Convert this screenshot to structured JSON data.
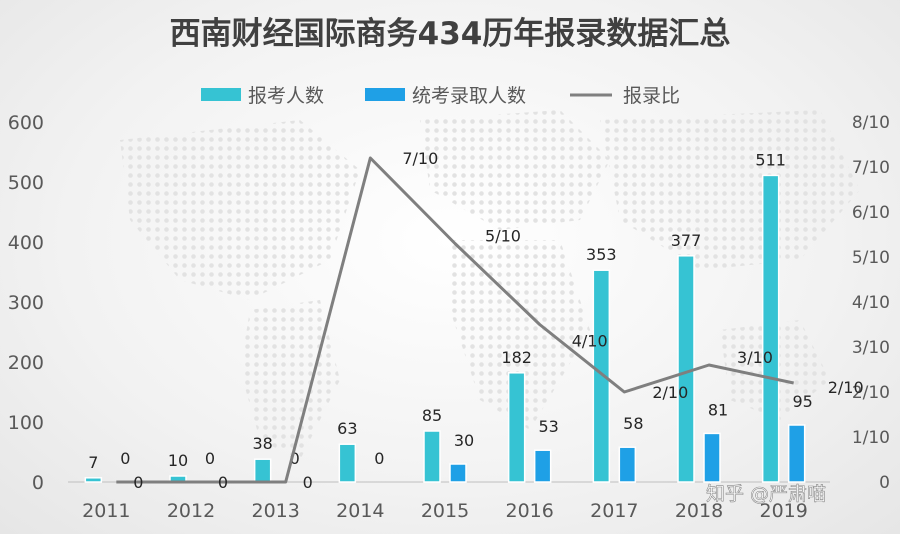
{
  "chart_data": {
    "type": "bar",
    "title": "西南财经国际商务434历年报录数据汇总",
    "categories": [
      "2011",
      "2012",
      "2013",
      "2014",
      "2015",
      "2016",
      "2017",
      "2018",
      "2019"
    ],
    "series": [
      {
        "name": "报考人数",
        "type": "bar",
        "axis": "left",
        "color": "#36C3D3",
        "values": [
          7,
          10,
          38,
          63,
          85,
          182,
          353,
          377,
          511
        ]
      },
      {
        "name": "统考录取人数",
        "type": "bar",
        "axis": "left",
        "color": "#1FA0E6",
        "values": [
          0,
          0,
          0,
          0,
          30,
          53,
          58,
          81,
          95
        ]
      },
      {
        "name": "报录比",
        "type": "line",
        "axis": "right",
        "color": "#7F7F7F",
        "values": [
          0,
          0,
          0,
          7.2,
          5.3,
          3.5,
          2.0,
          2.6,
          2.2
        ],
        "labels": [
          "0",
          "0",
          "0",
          "7/10",
          "5/10",
          "4/10",
          "2/10",
          "3/10",
          "2/10"
        ]
      }
    ],
    "y_left": {
      "min": 0,
      "max": 600,
      "ticks": [
        "0",
        "100",
        "200",
        "300",
        "400",
        "500",
        "600"
      ]
    },
    "y_right": {
      "min": 0,
      "max": 8,
      "ticks": [
        "0",
        "1/10",
        "2/10",
        "3/10",
        "4/10",
        "5/10",
        "6/10",
        "7/10",
        "8/10"
      ]
    },
    "legend": {
      "position": "top"
    },
    "grid": false
  },
  "watermark": "知乎 @严肃喵"
}
